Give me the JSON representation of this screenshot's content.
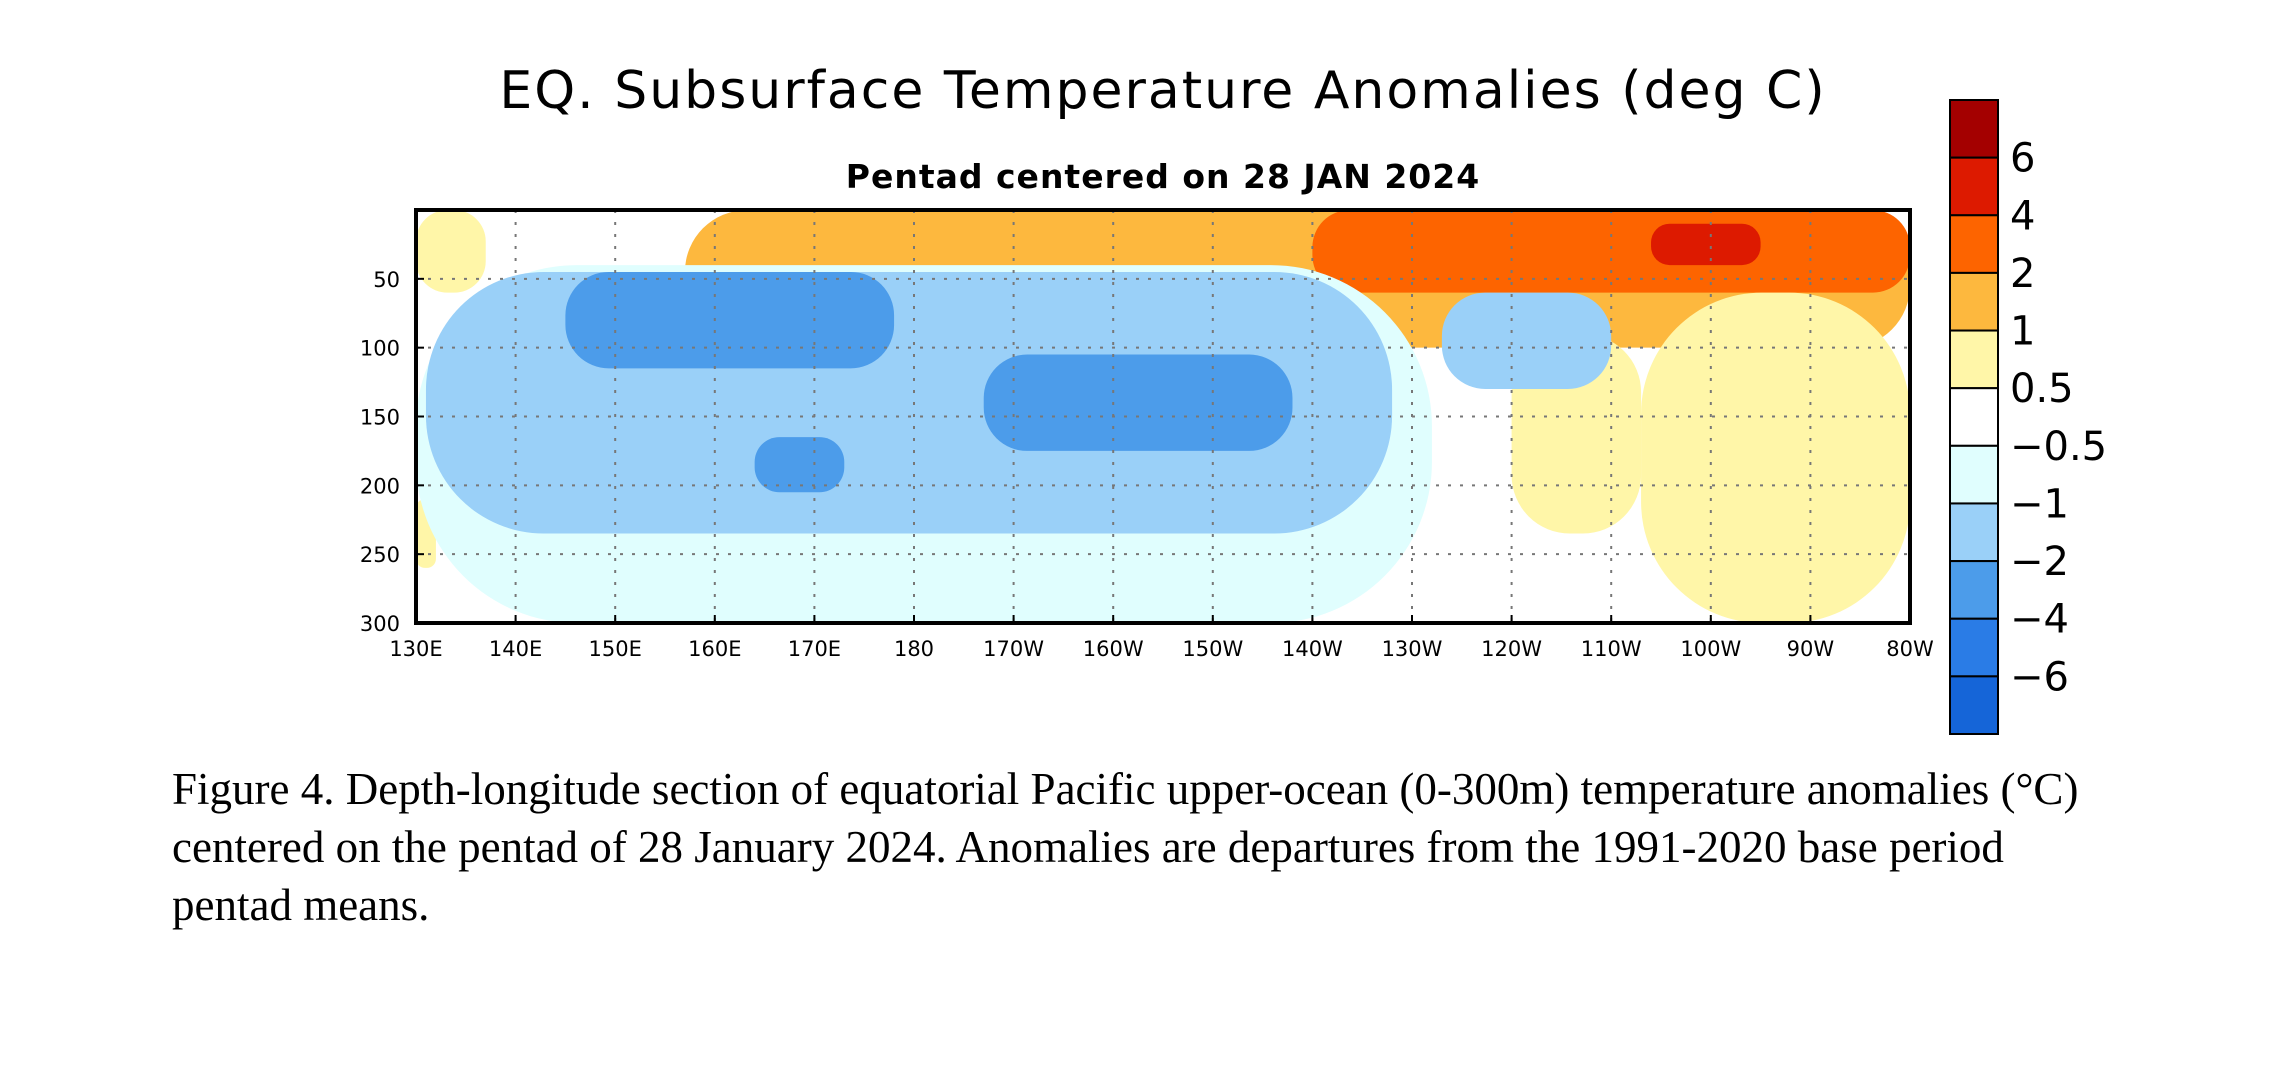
{
  "chart_data": {
    "type": "heatmap",
    "title": "EQ. Subsurface Temperature Anomalies (deg C)",
    "subtitle": "Pentad centered on 28 JAN 2024",
    "x_ticks": [
      "130E",
      "140E",
      "150E",
      "160E",
      "170E",
      "180",
      "170W",
      "160W",
      "150W",
      "140W",
      "130W",
      "120W",
      "110W",
      "100W",
      "90W",
      "80W"
    ],
    "x_range_deg_east": [
      130,
      280
    ],
    "y_ticks": [
      50,
      100,
      150,
      200,
      250,
      300
    ],
    "y_range_m": [
      0,
      300
    ],
    "y_inverted": true,
    "grid": true,
    "colorbar": {
      "labels": [
        "6",
        "4",
        "2",
        "1",
        "0.5",
        "−0.5",
        "−1",
        "−2",
        "−4",
        "−6"
      ],
      "bins_top_to_bottom": [
        {
          "range": "> 6",
          "color": "#a40000"
        },
        {
          "range": "4 to 6",
          "color": "#dd1a00"
        },
        {
          "range": "2 to 4",
          "color": "#fd6400"
        },
        {
          "range": "1 to 2",
          "color": "#fdb83e"
        },
        {
          "range": "0.5 to 1",
          "color": "#fff6a8"
        },
        {
          "range": "-0.5 to 0.5",
          "color": "#ffffff"
        },
        {
          "range": "-1 to -0.5",
          "color": "#e0fefe"
        },
        {
          "range": "-2 to -1",
          "color": "#9ad0f8"
        },
        {
          "range": "-4 to -2",
          "color": "#4c9cea"
        },
        {
          "range": "-6 to -4",
          "color": "#2a7ce6"
        },
        {
          "range": "< -6",
          "color": "#1565d8"
        }
      ]
    },
    "anomaly_regions": [
      {
        "level": "0.5 to 1",
        "lon": [
          130,
          137
        ],
        "depth": [
          0,
          60
        ]
      },
      {
        "level": "0.5 to 1",
        "lon": [
          130,
          132
        ],
        "depth": [
          210,
          260
        ]
      },
      {
        "level": "1 to 2",
        "lon": [
          157,
          280
        ],
        "depth": [
          0,
          100
        ]
      },
      {
        "level": "2 to 4",
        "lon": [
          220,
          280
        ],
        "depth": [
          0,
          60
        ]
      },
      {
        "level": "4 to 6",
        "lon": [
          254,
          265
        ],
        "depth": [
          10,
          40
        ]
      },
      {
        "level": "0.5 to 1",
        "lon": [
          253,
          280
        ],
        "depth": [
          60,
          300
        ]
      },
      {
        "level": "0.5 to 1",
        "lon": [
          240,
          253
        ],
        "depth": [
          90,
          235
        ]
      },
      {
        "level": "-1 to -0.5",
        "lon": [
          130,
          232
        ],
        "depth": [
          40,
          300
        ]
      },
      {
        "level": "-2 to -1",
        "lon": [
          131,
          228
        ],
        "depth": [
          45,
          235
        ]
      },
      {
        "level": "-2 to -1",
        "lon": [
          233,
          250
        ],
        "depth": [
          60,
          130
        ]
      },
      {
        "level": "-4 to -2",
        "lon": [
          145,
          178
        ],
        "depth": [
          45,
          115
        ]
      },
      {
        "level": "-4 to -2",
        "lon": [
          187,
          218
        ],
        "depth": [
          105,
          175
        ]
      },
      {
        "level": "-4 to -2",
        "lon": [
          164,
          173
        ],
        "depth": [
          165,
          205
        ]
      }
    ]
  },
  "caption": "Figure 4. Depth-longitude section of equatorial Pacific upper-ocean (0-300m) temperature anomalies (°C) centered on the pentad of 28 January 2024. Anomalies are departures from the 1991-2020 base period pentad means."
}
